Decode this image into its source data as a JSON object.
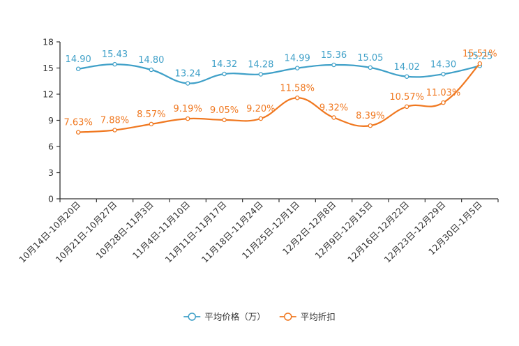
{
  "chart_data": {
    "type": "line",
    "categories": [
      "10月14日-10月20日",
      "10月21日-10月27日",
      "10月28日-11月3日",
      "11月4日-11月10日",
      "11月11日-11月17日",
      "11月18日-11月24日",
      "11月25日-12月1日",
      "12月2日-12月8日",
      "12月9日-12月15日",
      "12月16日-12月22日",
      "12月23日-12月29日",
      "12月30日-1月5日"
    ],
    "series": [
      {
        "name": "平均价格（万）",
        "color": "#3fa0c8",
        "values": [
          14.9,
          15.43,
          14.8,
          13.24,
          14.32,
          14.28,
          14.99,
          15.36,
          15.05,
          14.02,
          14.3,
          15.25
        ],
        "labels": [
          "14.90",
          "15.43",
          "14.80",
          "13.24",
          "14.32",
          "14.28",
          "14.99",
          "15.36",
          "15.05",
          "14.02",
          "14.30",
          "15.25"
        ]
      },
      {
        "name": "平均折扣",
        "color": "#f07820",
        "values": [
          7.63,
          7.88,
          8.57,
          9.19,
          9.05,
          9.2,
          11.58,
          9.32,
          8.39,
          10.57,
          11.03,
          15.51
        ],
        "labels": [
          "7.63%",
          "7.88%",
          "8.57%",
          "9.19%",
          "9.05%",
          "9.20%",
          "11.58%",
          "9.32%",
          "8.39%",
          "10.57%",
          "11.03%",
          "15.51%"
        ]
      }
    ],
    "ylim": [
      0,
      18
    ],
    "yticks": [
      0,
      3,
      6,
      9,
      12,
      15,
      18
    ],
    "title": "",
    "xlabel": "",
    "ylabel": "",
    "legend_position": "bottom-center",
    "grid": false,
    "axis_color": "#333333"
  }
}
